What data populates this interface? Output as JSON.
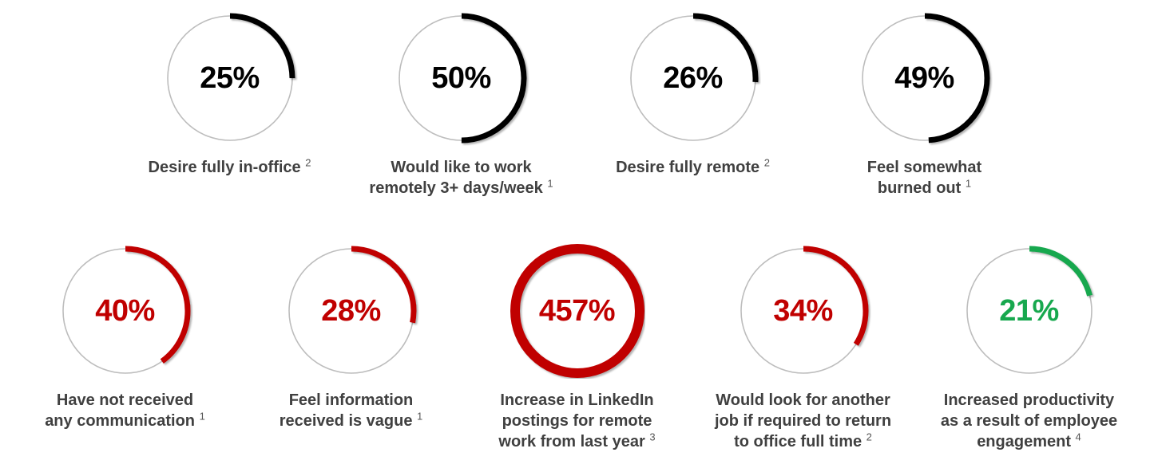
{
  "chart_data": {
    "type": "donut",
    "title": "",
    "description": "Remote work statistics shown as circular gauge charts; arc length equals percent of full circle (values over 100% render a full thick ring)",
    "base_ring_color": "#BDBDBD",
    "label_color": "#404040",
    "colors": {
      "black": "#000000",
      "red": "#C00000",
      "green": "#17A84E"
    },
    "rows": [
      {
        "items": [
          {
            "display": "25%",
            "percent": 25,
            "color": "#000000",
            "label_lines": [
              "Desire fully in-office"
            ],
            "superscript": "2"
          },
          {
            "display": "50%",
            "percent": 50,
            "color": "#000000",
            "label_lines": [
              "Would like to work",
              "remotely 3+ days/week"
            ],
            "superscript": "1"
          },
          {
            "display": "26%",
            "percent": 26,
            "color": "#000000",
            "label_lines": [
              "Desire fully remote"
            ],
            "superscript": "2"
          },
          {
            "display": "49%",
            "percent": 49,
            "color": "#000000",
            "label_lines": [
              "Feel somewhat",
              "burned out"
            ],
            "superscript": "1"
          }
        ]
      },
      {
        "items": [
          {
            "display": "40%",
            "percent": 40,
            "color": "#C00000",
            "label_lines": [
              "Have not received",
              "any communication"
            ],
            "superscript": "1"
          },
          {
            "display": "28%",
            "percent": 28,
            "color": "#C00000",
            "label_lines": [
              "Feel information",
              "received is vague"
            ],
            "superscript": "1"
          },
          {
            "display": "457%",
            "percent": 457,
            "color": "#C00000",
            "label_lines": [
              "Increase in LinkedIn",
              "postings for remote",
              "work from last year"
            ],
            "superscript": "3"
          },
          {
            "display": "34%",
            "percent": 34,
            "color": "#C00000",
            "label_lines": [
              "Would look for another",
              "job if required to return",
              "to office full time"
            ],
            "superscript": "2"
          },
          {
            "display": "21%",
            "percent": 21,
            "color": "#17A84E",
            "label_lines": [
              "Increased productivity",
              "as a result of employee",
              "engagement"
            ],
            "superscript": "4"
          }
        ]
      }
    ]
  }
}
